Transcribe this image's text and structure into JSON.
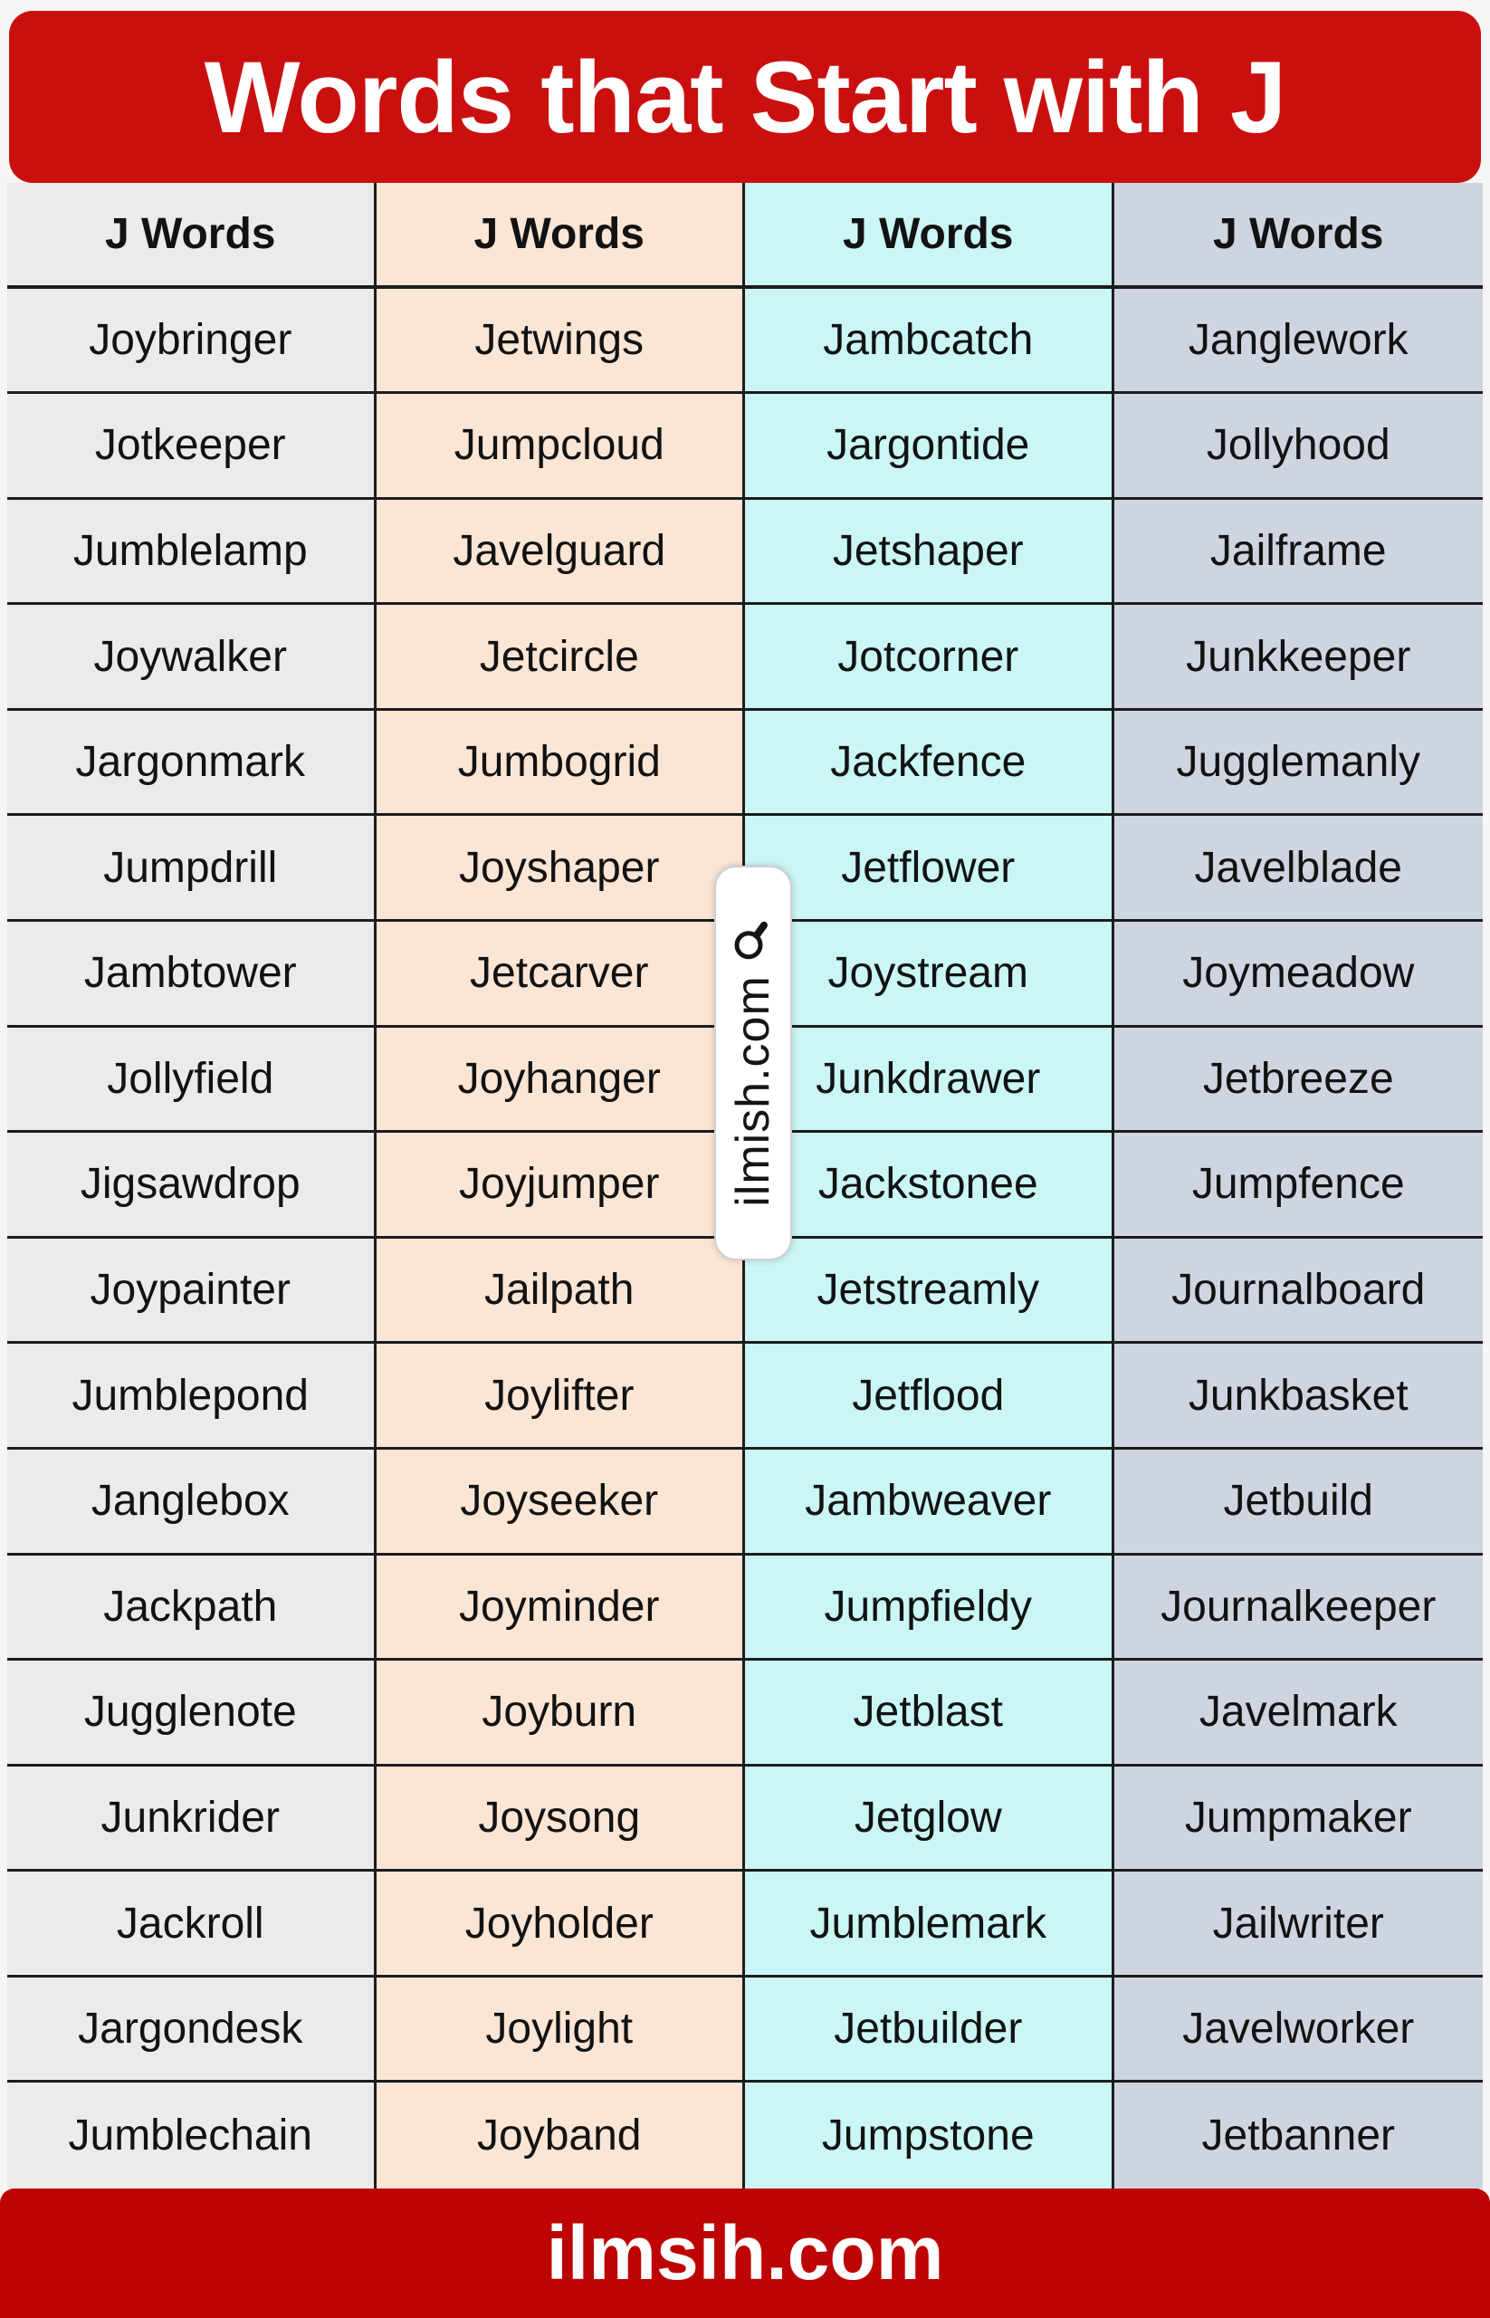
{
  "banner": {
    "title": "Words that Start with J"
  },
  "footer": {
    "site": "ilmsih.com"
  },
  "watermark": {
    "text": "ilmish.com",
    "icon": "magnifier-icon"
  },
  "colors": {
    "banner_red": "#C9100F",
    "footer_red": "#BD0303",
    "page_bg": "#F6F6F6",
    "border": "#1C1C1C",
    "text": "#121212",
    "column_bgs": [
      "#EBEBEB",
      "#FBE5D5",
      "#CAF6F5",
      "#CFD5E0"
    ]
  },
  "table": {
    "headers": [
      "J Words",
      "J Words",
      "J Words",
      "J Words"
    ],
    "rows": [
      [
        "Joybringer",
        "Jetwings",
        "Jambcatch",
        "Janglework"
      ],
      [
        "Jotkeeper",
        "Jumpcloud",
        "Jargontide",
        "Jollyhood"
      ],
      [
        "Jumblelamp",
        "Javelguard",
        "Jetshaper",
        "Jailframe"
      ],
      [
        "Joywalker",
        "Jetcircle",
        "Jotcorner",
        "Junkkeeper"
      ],
      [
        "Jargonmark",
        "Jumbogrid",
        "Jackfence",
        "Jugglemanly"
      ],
      [
        "Jumpdrill",
        "Joyshaper",
        "Jetflower",
        "Javelblade"
      ],
      [
        "Jambtower",
        "Jetcarver",
        "Joystream",
        "Joymeadow"
      ],
      [
        "Jollyfield",
        "Joyhanger",
        "Junkdrawer",
        "Jetbreeze"
      ],
      [
        "Jigsawdrop",
        "Joyjumper",
        "Jackstonee",
        "Jumpfence"
      ],
      [
        "Joypainter",
        "Jailpath",
        "Jetstreamly",
        "Journalboard"
      ],
      [
        "Jumblepond",
        "Joylifter",
        "Jetflood",
        "Junkbasket"
      ],
      [
        "Janglebox",
        "Joyseeker",
        "Jambweaver",
        "Jetbuild"
      ],
      [
        "Jackpath",
        "Joyminder",
        "Jumpfieldy",
        "Journalkeeper"
      ],
      [
        "Jugglenote",
        "Joyburn",
        "Jetblast",
        "Javelmark"
      ],
      [
        "Junkrider",
        "Joysong",
        "Jetglow",
        "Jumpmaker"
      ],
      [
        "Jackroll",
        "Joyholder",
        "Jumblemark",
        "Jailwriter"
      ],
      [
        "Jargondesk",
        "Joylight",
        "Jetbuilder",
        "Javelworker"
      ],
      [
        "Jumblechain",
        "Joyband",
        "Jumpstone",
        "Jetbanner"
      ]
    ]
  }
}
